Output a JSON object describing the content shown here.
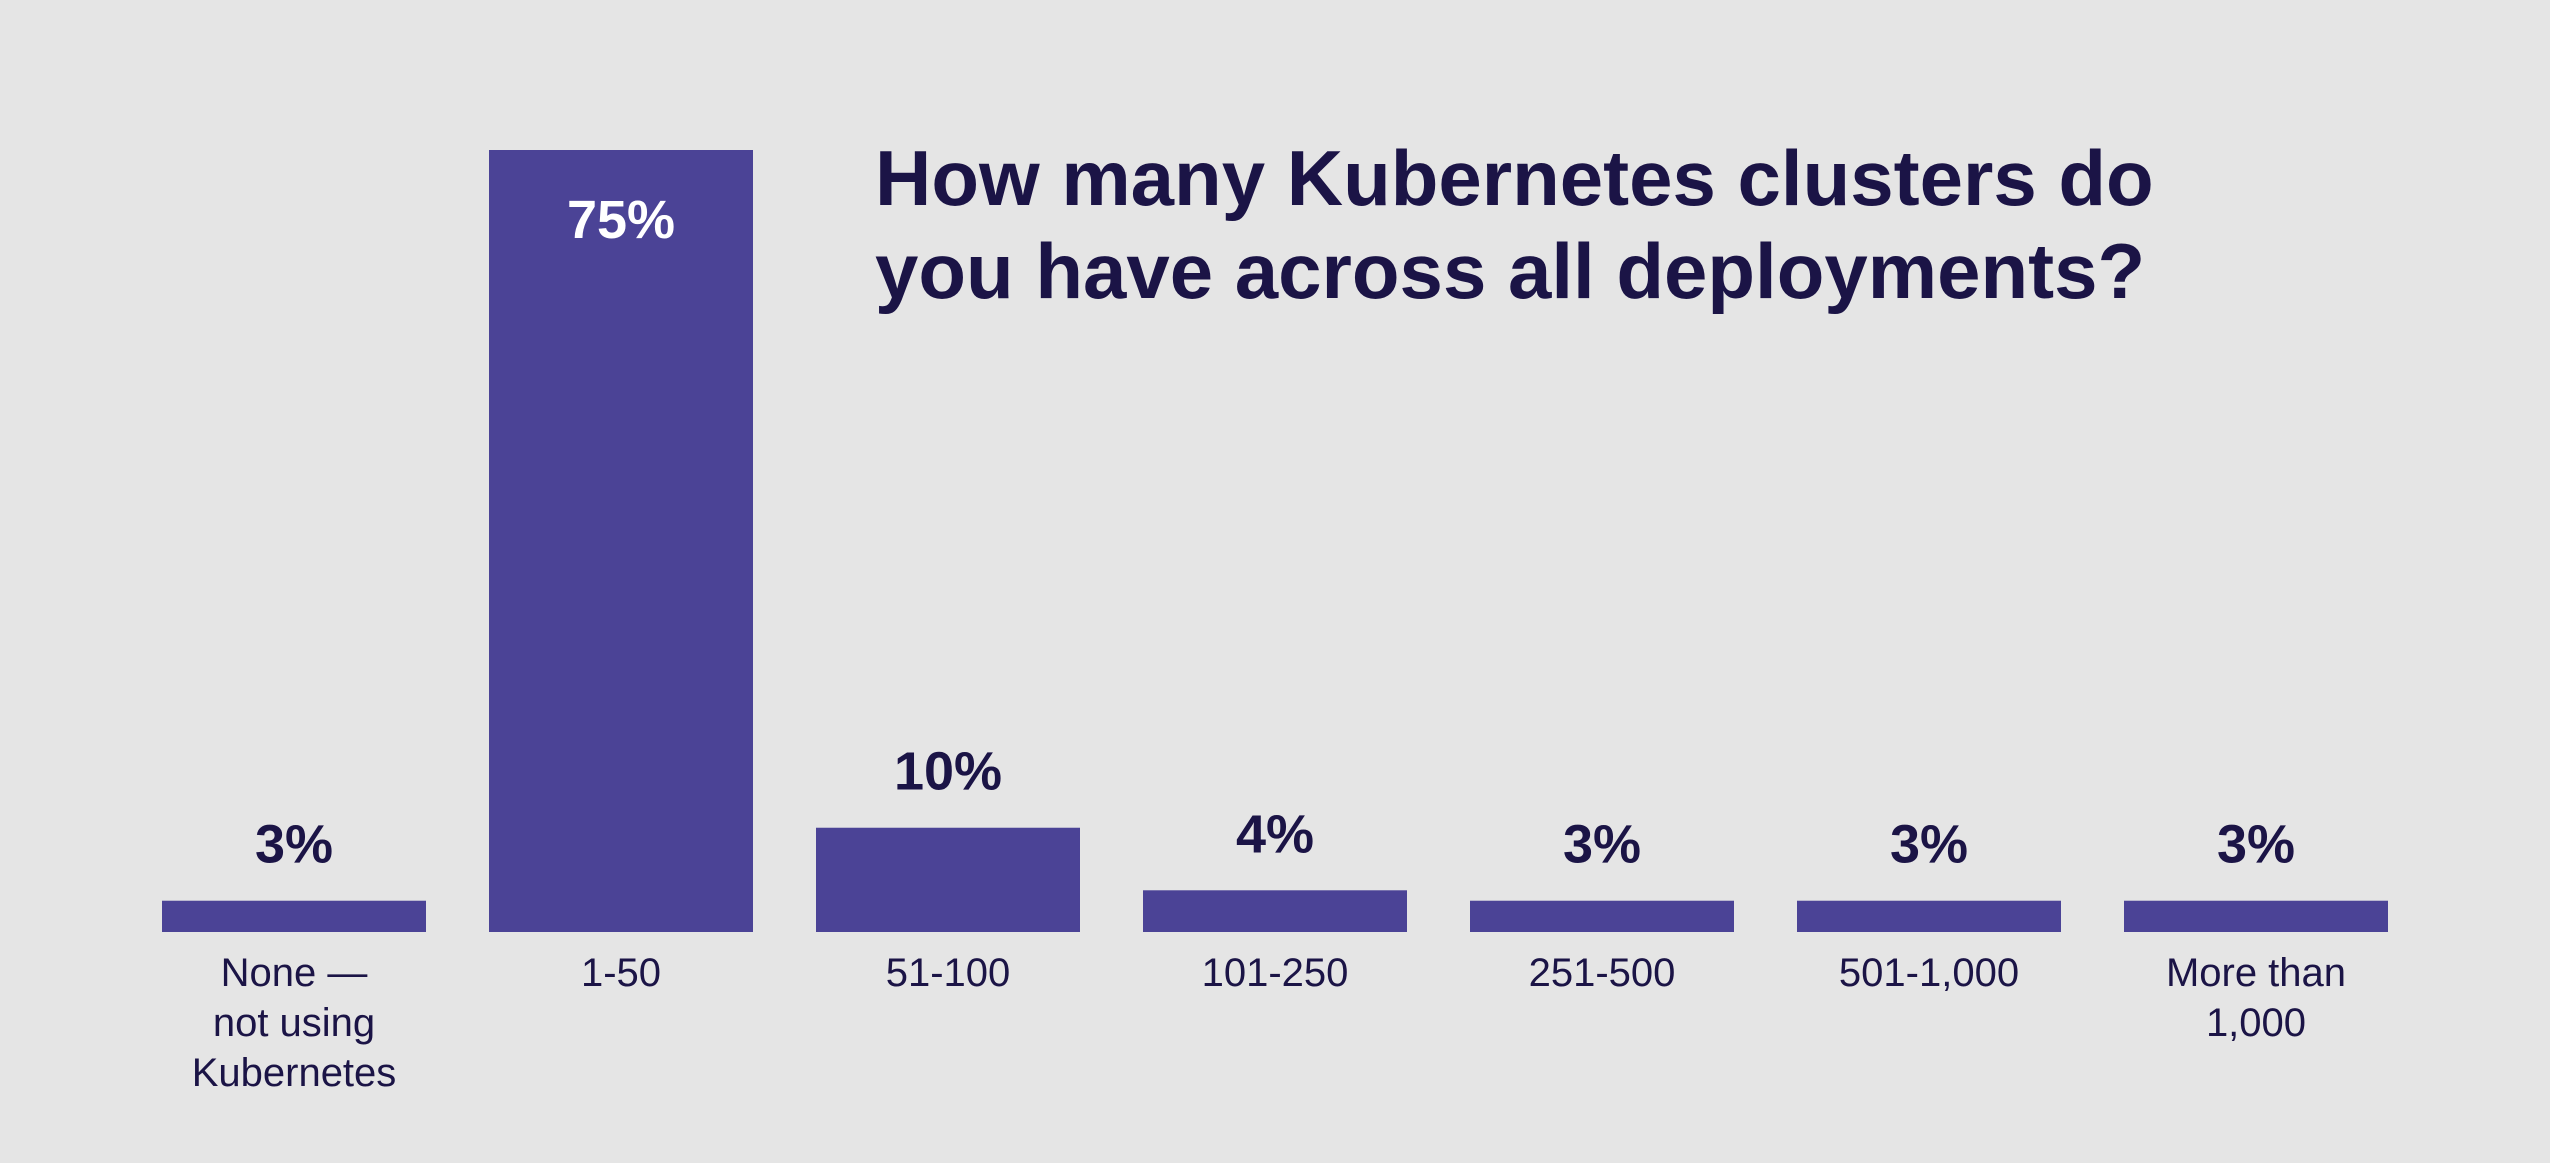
{
  "chart_data": {
    "type": "bar",
    "title_lines": [
      "How many Kubernetes clusters do",
      "you have across all deployments?"
    ],
    "categories": [
      [
        "None —",
        "not using",
        "Kubernetes"
      ],
      [
        "1-50"
      ],
      [
        "51-100"
      ],
      [
        "101-250"
      ],
      [
        "251-500"
      ],
      [
        "501-1,000"
      ],
      [
        "More than",
        "1,000"
      ]
    ],
    "values": [
      3,
      75,
      10,
      4,
      3,
      3,
      3
    ],
    "value_labels": [
      "3%",
      "75%",
      "10%",
      "4%",
      "3%",
      "3%",
      "3%"
    ],
    "ylim": [
      0,
      75
    ],
    "grid": false,
    "colors": {
      "bar": "#4b4396",
      "text": "#1b1446",
      "label_inside": "#ffffff",
      "background": "#e5e5e5"
    }
  }
}
